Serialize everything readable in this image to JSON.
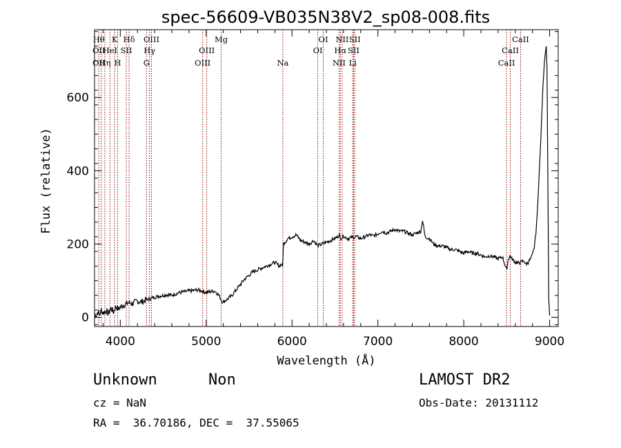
{
  "chart_data": {
    "type": "line",
    "title": "spec-56609-VB035N38V2_sp08-008.fits",
    "xlabel": "Wavelength (Å)",
    "ylabel": "Flux (relative)",
    "xlim": [
      3700,
      9100
    ],
    "ylim": [
      -25,
      785
    ],
    "xticks": [
      4000,
      5000,
      6000,
      7000,
      8000,
      9000
    ],
    "yticks": [
      0,
      200,
      400,
      600
    ],
    "grid": false,
    "line_color": "#000000",
    "marker_color": "#8b0000",
    "spectrum": {
      "x": [
        3700,
        3720,
        3740,
        3760,
        3780,
        3800,
        3830,
        3860,
        3890,
        3920,
        3950,
        3980,
        4000,
        4050,
        4100,
        4150,
        4200,
        4250,
        4300,
        4330,
        4360,
        4400,
        4450,
        4500,
        4550,
        4600,
        4650,
        4700,
        4750,
        4800,
        4850,
        4900,
        4950,
        5000,
        5050,
        5100,
        5150,
        5180,
        5200,
        5250,
        5300,
        5350,
        5400,
        5450,
        5500,
        5550,
        5600,
        5650,
        5700,
        5750,
        5800,
        5850,
        5880,
        5890,
        5900,
        5950,
        6000,
        6050,
        6100,
        6150,
        6200,
        6250,
        6300,
        6350,
        6400,
        6450,
        6500,
        6550,
        6563,
        6600,
        6650,
        6700,
        6750,
        6800,
        6850,
        6900,
        6950,
        7000,
        7050,
        7100,
        7150,
        7200,
        7250,
        7300,
        7350,
        7400,
        7450,
        7500,
        7520,
        7550,
        7600,
        7650,
        7700,
        7750,
        7800,
        7850,
        7900,
        7950,
        8000,
        8050,
        8100,
        8150,
        8200,
        8250,
        8300,
        8350,
        8400,
        8450,
        8498,
        8520,
        8542,
        8560,
        8600,
        8640,
        8662,
        8700,
        8720,
        8750,
        8780,
        8800,
        8820,
        8840,
        8860,
        8880,
        8900,
        8920,
        8940,
        8960,
        8970,
        8980,
        8990,
        9000
      ],
      "y": [
        10,
        5,
        15,
        8,
        20,
        12,
        18,
        10,
        25,
        15,
        30,
        22,
        28,
        35,
        40,
        38,
        45,
        42,
        48,
        50,
        52,
        55,
        58,
        60,
        62,
        60,
        65,
        68,
        70,
        72,
        73,
        75,
        72,
        68,
        70,
        72,
        60,
        45,
        42,
        50,
        60,
        75,
        90,
        105,
        115,
        125,
        130,
        135,
        140,
        145,
        150,
        140,
        145,
        138,
        200,
        215,
        220,
        225,
        210,
        205,
        200,
        210,
        195,
        200,
        205,
        210,
        215,
        225,
        215,
        222,
        215,
        218,
        220,
        215,
        220,
        225,
        222,
        228,
        235,
        230,
        235,
        240,
        235,
        235,
        230,
        225,
        230,
        235,
        265,
        220,
        215,
        200,
        195,
        195,
        190,
        185,
        185,
        180,
        175,
        180,
        175,
        175,
        170,
        165,
        168,
        165,
        160,
        165,
        130,
        160,
        168,
        160,
        150,
        148,
        150,
        155,
        145,
        150,
        160,
        170,
        190,
        230,
        300,
        400,
        500,
        620,
        700,
        740,
        680,
        350,
        50,
        5
      ]
    },
    "lines": [
      {
        "x": 3750,
        "top": "Hθ",
        "mid": "OII",
        "bot": "OII"
      },
      {
        "x": 3780,
        "top": "",
        "mid": "",
        "bot": ""
      },
      {
        "x": 3820,
        "top": "",
        "mid": "",
        "bot": "Hη"
      },
      {
        "x": 3880,
        "top": "",
        "mid": "HeI",
        "bot": ""
      },
      {
        "x": 3934,
        "top": "K",
        "mid": "",
        "bot": ""
      },
      {
        "x": 3969,
        "top": "",
        "mid": "",
        "bot": "H"
      },
      {
        "x": 4070,
        "top": "",
        "mid": "SII",
        "bot": ""
      },
      {
        "x": 4102,
        "top": "Hδ",
        "mid": "",
        "bot": ""
      },
      {
        "x": 4305,
        "top": "",
        "mid": "",
        "bot": "G"
      },
      {
        "x": 4340,
        "top": "",
        "mid": "Hγ",
        "bot": ""
      },
      {
        "x": 4363,
        "top": "OIII",
        "mid": "",
        "bot": ""
      },
      {
        "x": 4959,
        "top": "",
        "mid": "",
        "bot": "OIII"
      },
      {
        "x": 5007,
        "top": "",
        "mid": "OIII",
        "bot": ""
      },
      {
        "x": 5175,
        "top": "Mg",
        "mid": "",
        "bot": ""
      },
      {
        "x": 5893,
        "top": "",
        "mid": "",
        "bot": "Na"
      },
      {
        "x": 6300,
        "top": "",
        "mid": "OI",
        "bot": ""
      },
      {
        "x": 6364,
        "top": "OI",
        "mid": "",
        "bot": ""
      },
      {
        "x": 6548,
        "top": "",
        "mid": "",
        "bot": "NII"
      },
      {
        "x": 6563,
        "top": "",
        "mid": "Hα",
        "bot": ""
      },
      {
        "x": 6584,
        "top": "NII",
        "mid": "",
        "bot": ""
      },
      {
        "x": 6707,
        "top": "",
        "mid": "",
        "bot": "Li"
      },
      {
        "x": 6717,
        "top": "",
        "mid": "SII",
        "bot": ""
      },
      {
        "x": 6731,
        "top": "SII",
        "mid": "",
        "bot": ""
      },
      {
        "x": 8498,
        "top": "",
        "mid": "",
        "bot": "CaII"
      },
      {
        "x": 8542,
        "top": "",
        "mid": "CaII",
        "bot": ""
      },
      {
        "x": 8662,
        "top": "CaII",
        "mid": "",
        "bot": ""
      }
    ]
  },
  "info": {
    "class_label": "Unknown",
    "subclass_label": "Non",
    "survey": "LAMOST DR2",
    "cz": "cz = NaN",
    "obs_date": "Obs-Date: 20131112",
    "coords": "RA =  36.70186, DEC =  37.55065"
  }
}
